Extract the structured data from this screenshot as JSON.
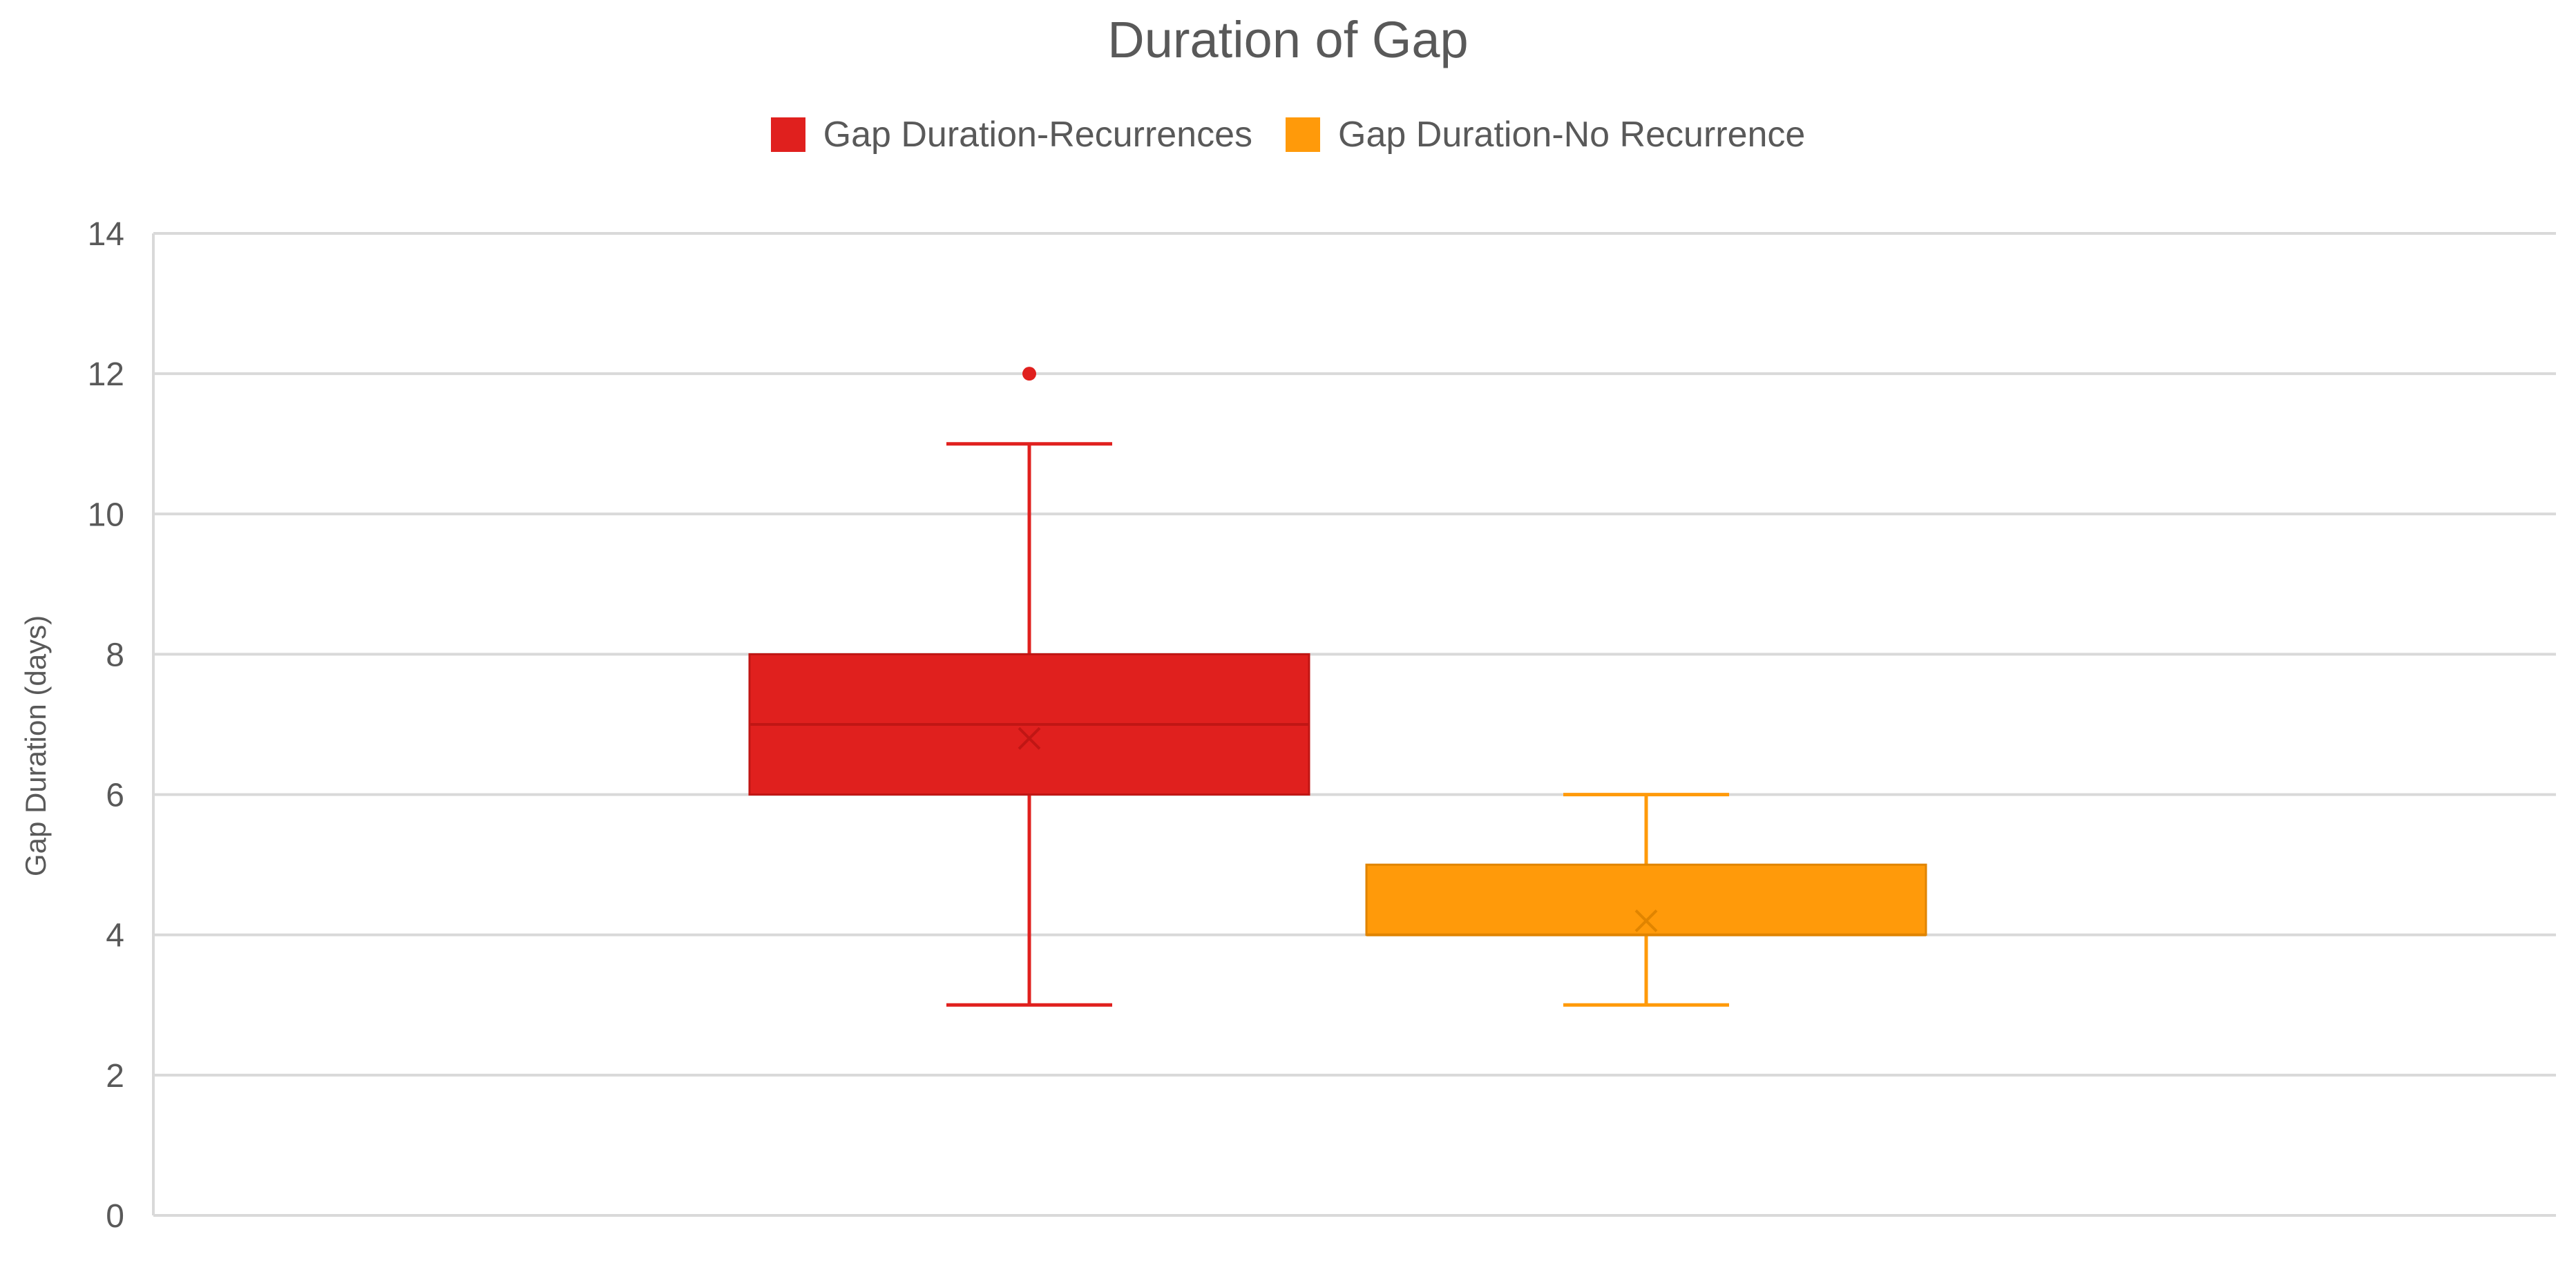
{
  "chart_data": {
    "type": "box",
    "title": "Duration of Gap",
    "xlabel": "",
    "ylabel": "Gap Duration (days)",
    "ylim": [
      0,
      14
    ],
    "yticks": [
      0,
      2,
      4,
      6,
      8,
      10,
      12,
      14
    ],
    "grid": true,
    "legend_position": "top",
    "series": [
      {
        "name": "Gap Duration-Recurrences",
        "color": "#e0201e",
        "min": 3,
        "q1": 6,
        "median": 7,
        "q3": 8,
        "max": 11,
        "mean": 6.8,
        "outliers": [
          12
        ]
      },
      {
        "name": "Gap Duration-No Recurrence",
        "color": "#ff9a0a",
        "min": 3,
        "q1": 4,
        "median": 4,
        "q3": 5,
        "max": 6,
        "mean": 4.2,
        "outliers": []
      }
    ]
  }
}
